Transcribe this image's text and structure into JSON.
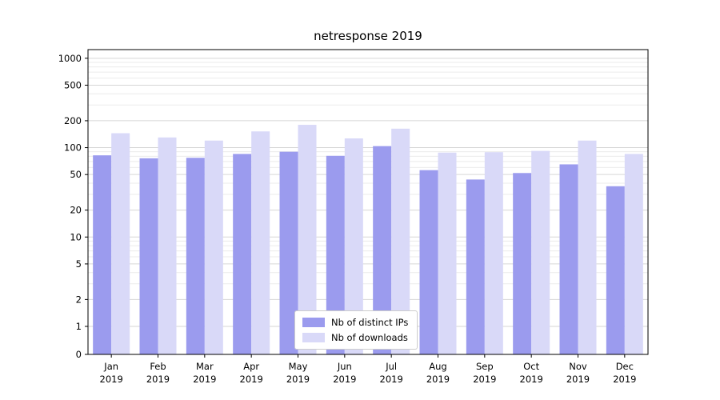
{
  "chart_data": {
    "type": "bar",
    "title": "netresponse 2019",
    "categories": [
      "Jan",
      "Feb",
      "Mar",
      "Apr",
      "May",
      "Jun",
      "Jul",
      "Aug",
      "Sep",
      "Oct",
      "Nov",
      "Dec"
    ],
    "category_year": "2019",
    "series": [
      {
        "name": "Nb of distinct IPs",
        "color": "#9b9bee",
        "values": [
          82,
          76,
          77,
          85,
          90,
          81,
          104,
          56,
          44,
          52,
          65,
          37
        ]
      },
      {
        "name": "Nb of downloads",
        "color": "#d9d9f8",
        "values": [
          145,
          130,
          120,
          152,
          180,
          127,
          163,
          88,
          89,
          92,
          120,
          85
        ]
      }
    ],
    "yscale": "symlog",
    "yticks": [
      0,
      1,
      2,
      5,
      10,
      20,
      50,
      100,
      200,
      500,
      1000
    ],
    "ylim": [
      0,
      1250
    ],
    "grid": true,
    "legend_position": "lower center",
    "colors": {
      "major_grid": "#d6d6d6",
      "minor_grid": "#ebebeb",
      "axis": "#000000"
    }
  }
}
